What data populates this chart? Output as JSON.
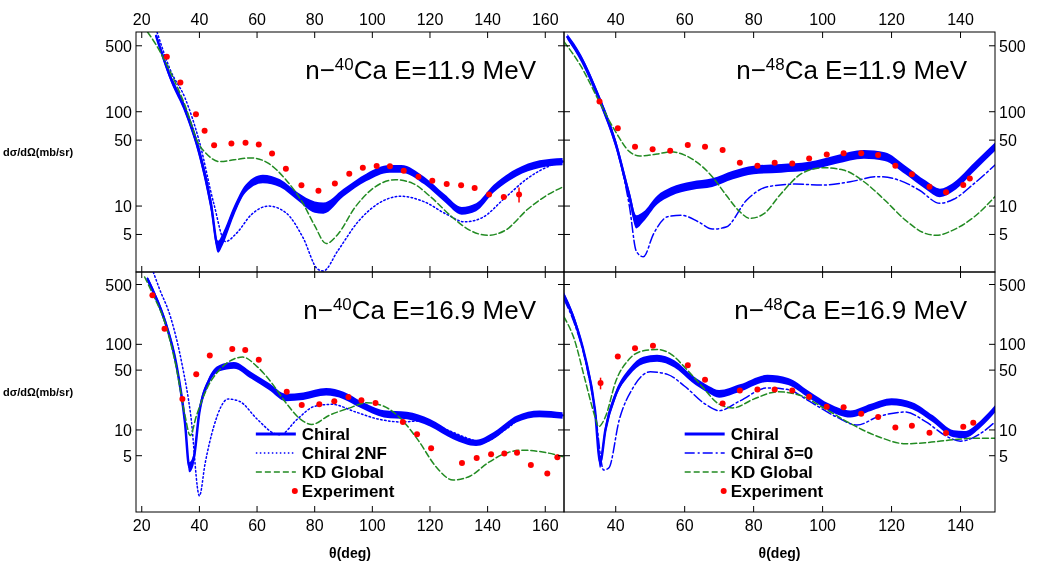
{
  "chart_data": [
    {
      "type": "line",
      "title": "n−$^{40}$Ca  E=11.9 MeV",
      "ylabel": "dσ/dΩ(mb/sr)",
      "log": "y",
      "xlim": [
        18,
        166.5
      ],
      "xticks": [
        20,
        40,
        60,
        80,
        100,
        120,
        140,
        160
      ],
      "ylim": [
        2,
        700
      ],
      "yticks": [
        5,
        10,
        50,
        100,
        500
      ],
      "series": [
        {
          "type": "line",
          "color": "#0000ff",
          "line_style": "solid",
          "x": [
            25,
            30,
            35,
            40,
            44,
            46.5,
            48,
            52,
            56,
            62,
            68,
            74,
            80,
            83,
            90,
            98,
            106,
            110,
            118,
            125,
            131,
            136,
            142,
            150,
            158,
            166
          ],
          "values": [
            635,
            229,
            107,
            37,
            10.6,
            3.7,
            4.4,
            8.9,
            15.2,
            19.3,
            17.4,
            12.7,
            9.9,
            9.6,
            13.9,
            20.2,
            24.8,
            24.8,
            18.6,
            12.2,
            8.9,
            9.7,
            15.2,
            22.6,
            27.8,
            29.6
          ],
          "lower": [
            600,
            210,
            96,
            32,
            8.8,
            3.2,
            3.8,
            7.9,
            13.8,
            17.4,
            15.8,
            11.5,
            8.5,
            8.3,
            12.6,
            18.4,
            22.6,
            22.6,
            17,
            11.1,
            8.1,
            8.8,
            13.8,
            20.6,
            25.3,
            27
          ],
          "upper": [
            670,
            250,
            118,
            42,
            12.4,
            4.3,
            5.1,
            10,
            16.8,
            21.5,
            19.2,
            14,
            11.2,
            10.9,
            15.3,
            22.2,
            27.2,
            27.2,
            20.4,
            13.4,
            9.8,
            10.7,
            16.7,
            24.8,
            30.5,
            32.4
          ]
        },
        {
          "type": "line",
          "color": "#0000ff",
          "line_style": "dotted",
          "x": [
            25.3,
            30,
            35,
            40,
            45,
            49,
            53,
            58,
            64,
            70,
            76,
            81,
            83,
            88,
            95,
            102,
            110,
            118,
            126,
            132,
            138,
            146,
            154,
            162,
            166
          ],
          "values": [
            700,
            273,
            140,
            48,
            10.6,
            4.2,
            5.2,
            8.1,
            10,
            8.5,
            4.6,
            2.15,
            2.05,
            3.35,
            6.8,
            10.6,
            12.7,
            11.1,
            8.1,
            6.8,
            7.5,
            12.2,
            19.8,
            27,
            29.6
          ]
        },
        {
          "type": "line",
          "color": "#228b22",
          "line_style": "dashed",
          "x": [
            22,
            25,
            30,
            35,
            40,
            42,
            47,
            52,
            58,
            64,
            70,
            76,
            80,
            84,
            88,
            94,
            100,
            108,
            114,
            120,
            128,
            134,
            140,
            146,
            154,
            160,
            166
          ],
          "values": [
            700,
            510,
            261,
            117,
            44,
            37,
            29.6,
            30.9,
            32.4,
            28.3,
            19,
            10.6,
            6.2,
            4,
            5,
            9.7,
            15.2,
            19,
            17.4,
            12.7,
            7.5,
            5.5,
            4.9,
            5.5,
            9.3,
            12.7,
            15.9
          ]
        },
        {
          "type": "scatter",
          "color": "#ff0000",
          "marker": "circle",
          "x": [
            28.7,
            33.4,
            38.8,
            41.8,
            45.1,
            51.1,
            56,
            60.6,
            65.2,
            70,
            75.4,
            81.3,
            87,
            92,
            96.7,
            101.5,
            106.1,
            110.9,
            116,
            120.8,
            125.8,
            130.8,
            135.5,
            140.5,
            145.6,
            150.9
          ],
          "values": [
            383,
            204,
            94,
            63,
            44,
            46,
            47,
            45,
            36,
            24.8,
            16.6,
            14.5,
            17.3,
            22,
            25.4,
            26.6,
            26.4,
            23.7,
            20.4,
            18.5,
            17.1,
            16.6,
            15.5,
            13.3,
            12.5,
            13.3
          ],
          "errors": [
            null,
            null,
            null,
            null,
            null,
            null,
            null,
            null,
            null,
            null,
            null,
            null,
            null,
            null,
            null,
            null,
            null,
            null,
            null,
            null,
            null,
            null,
            null,
            null,
            null,
            2.4
          ]
        }
      ]
    },
    {
      "type": "line",
      "title": "n−$^{48}$Ca  E=11.9 MeV",
      "log": "y2",
      "xlim": [
        25,
        150
      ],
      "xticks": [
        40,
        60,
        80,
        100,
        120,
        140
      ],
      "y2lim": [
        2,
        700
      ],
      "y2ticks": [
        5,
        10,
        50,
        100,
        500
      ],
      "series": [
        {
          "type": "line",
          "axis": "y2",
          "color": "#0000ff",
          "line_style": "solid",
          "x": [
            26,
            30,
            35,
            40,
            44,
            46,
            48,
            52,
            56,
            62,
            68,
            74,
            80,
            88,
            96,
            104,
            112,
            118,
            124,
            130,
            134,
            138,
            144,
            150
          ],
          "values": [
            620,
            367,
            144,
            46,
            12.6,
            6.8,
            7.7,
            11.6,
            14.2,
            16.4,
            17.7,
            21.3,
            24.1,
            25.1,
            26.5,
            31.2,
            35.3,
            33.4,
            24.1,
            16.7,
            13.8,
            16,
            26,
            42.6
          ],
          "lower": [
            580,
            335,
            130,
            41,
            11,
            5.8,
            6.8,
            10.4,
            12.8,
            14.8,
            15.9,
            19.2,
            21.7,
            22.6,
            23.9,
            28.1,
            31.8,
            30.1,
            21.7,
            15,
            12.4,
            14.4,
            23.4,
            38.3
          ],
          "upper": [
            665,
            400,
            158,
            51,
            14.4,
            8,
            8.7,
            12.9,
            15.8,
            18.2,
            19.7,
            23.7,
            26.8,
            27.9,
            29.5,
            34.6,
            39.2,
            37.1,
            26.8,
            18.5,
            15.3,
            17.8,
            28.9,
            47.3
          ]
        },
        {
          "type": "line",
          "axis": "y2",
          "color": "#0000ff",
          "line_style": "dashdot",
          "x": [
            26,
            30,
            35,
            40,
            44,
            46,
            48,
            51,
            55,
            59,
            64,
            68,
            72,
            78,
            84,
            92,
            100,
            108,
            116,
            122,
            128,
            134,
            138,
            144,
            150
          ],
          "values": [
            620,
            367,
            144,
            46,
            9.8,
            3.3,
            2.9,
            5.1,
            7.7,
            8,
            6.8,
            5.7,
            6,
            11.6,
            16,
            17.1,
            16.7,
            18.1,
            20.5,
            18.9,
            14.8,
            10.7,
            11.8,
            17.4,
            27.2
          ]
        },
        {
          "type": "line",
          "axis": "y2",
          "color": "#228b22",
          "line_style": "dashed",
          "x": [
            25,
            30,
            35,
            40,
            44,
            47,
            52,
            56,
            60,
            64,
            68,
            72,
            76,
            79,
            83,
            88,
            94,
            100,
            106,
            112,
            118,
            124,
            130,
            133,
            138,
            144,
            150
          ],
          "values": [
            552,
            300,
            133,
            61,
            37.7,
            34,
            35.6,
            37.7,
            34.7,
            28.3,
            20.5,
            13.1,
            8.7,
            7.4,
            8.3,
            13.6,
            22.2,
            25.5,
            24.1,
            18.1,
            11.6,
            7.1,
            5.1,
            4.9,
            5.6,
            7.7,
            12.6
          ]
        },
        {
          "type": "scatter",
          "axis": "y2",
          "color": "#ff0000",
          "marker": "circle",
          "x": [
            35.3,
            40.6,
            45.6,
            50.7,
            55.8,
            60.9,
            65.9,
            71,
            76,
            81.1,
            86.1,
            91.2,
            96.1,
            101.2,
            106.1,
            111.2,
            116.1,
            121.1,
            125.9,
            131,
            135.8,
            140.8,
            142.7
          ],
          "values": [
            128,
            67,
            42.6,
            40,
            38.6,
            44.4,
            42.6,
            39.3,
            28.8,
            26.8,
            28.8,
            28.3,
            32,
            35.3,
            36.2,
            36.2,
            34.7,
            26.8,
            21.8,
            16,
            14,
            16.7,
            19.6
          ]
        }
      ]
    },
    {
      "type": "line",
      "title": "n−$^{40}$Ca  E=16.9 MeV",
      "xlabel": "θ(deg)",
      "ylabel": "dσ/dΩ(mb/sr)",
      "log": "y",
      "legend": "bottom",
      "xlim": [
        18,
        166.5
      ],
      "xticks": [
        20,
        40,
        60,
        80,
        100,
        120,
        140,
        160
      ],
      "ylim": [
        1.1,
        700
      ],
      "yticks": [
        5,
        10,
        50,
        100,
        500
      ],
      "series": [
        {
          "name": "Chiral",
          "type": "line",
          "color": "#0000ff",
          "line_style": "solid",
          "x": [
            22,
            24,
            28,
            32,
            35,
            36.5,
            38,
            40,
            43,
            47,
            52,
            58,
            64,
            70,
            76,
            84,
            90,
            96,
            104,
            112,
            120,
            128,
            136,
            142,
            150,
            158,
            166
          ],
          "values": [
            580,
            414,
            189,
            58,
            12.2,
            3.7,
            4.6,
            16.3,
            35.7,
            53,
            57,
            43.5,
            32.4,
            24.1,
            24.9,
            28,
            25.4,
            19.9,
            15.5,
            14.8,
            12.2,
            8.6,
            7.1,
            8.6,
            13.4,
            15.5,
            14.8
          ],
          "lower": [
            540,
            380,
            172,
            52,
            10.5,
            3.2,
            3.9,
            14.3,
            32.5,
            48.5,
            52,
            39.5,
            29.5,
            21.7,
            22.4,
            25.2,
            22.9,
            18,
            14,
            13.3,
            11,
            7.8,
            6.5,
            7.8,
            12.2,
            14.1,
            13.5
          ],
          "upper": [
            620,
            450,
            207,
            64,
            14,
            4.2,
            5.3,
            18.4,
            39,
            57.5,
            62,
            47.5,
            35.5,
            26.5,
            27.4,
            30.8,
            27.9,
            21.8,
            17,
            16.3,
            13.4,
            9.4,
            7.7,
            9.4,
            14.6,
            16.9,
            16.1
          ]
        },
        {
          "name": "Chiral 2NF",
          "type": "line",
          "color": "#0000ff",
          "line_style": "dotted",
          "x": [
            24,
            26,
            30,
            34,
            37,
            40,
            42,
            45,
            50,
            54,
            60,
            66,
            68,
            74,
            80,
            86,
            94,
            102,
            110,
            118,
            126,
            134,
            138,
            146,
            154,
            166
          ],
          "values": [
            700,
            457,
            208,
            58,
            14.8,
            1.7,
            4.1,
            11,
            23,
            21.5,
            13.4,
            9.1,
            8.8,
            13.4,
            18.9,
            19.9,
            16.3,
            13.4,
            12.4,
            12.8,
            10,
            7.8,
            7.1,
            10,
            14.8,
            14.8
          ]
        },
        {
          "name": "KD Global",
          "type": "line",
          "color": "#228b22",
          "line_style": "dashed",
          "x": [
            21,
            24,
            28,
            32,
            35,
            36.8,
            39,
            43,
            47,
            52,
            55,
            60,
            65,
            70,
            75,
            79,
            85,
            92,
            98,
            104,
            110,
            116,
            122,
            128,
            134,
            140,
            146,
            152,
            158,
            166
          ],
          "values": [
            612,
            375,
            180,
            53,
            14.8,
            8.6,
            14.8,
            32.4,
            50.4,
            67.5,
            71,
            55,
            35.7,
            20.8,
            13.4,
            11.6,
            14.8,
            18,
            20.8,
            18.9,
            13.4,
            7.5,
            3.75,
            2.6,
            2.9,
            4.1,
            5.3,
            5.8,
            5.6,
            4.9
          ]
        },
        {
          "name": "Experiment",
          "type": "scatter",
          "color": "#ff0000",
          "marker": "circle",
          "x": [
            23.7,
            27.9,
            34.1,
            38.9,
            43.6,
            51.4,
            55.9,
            60.6,
            70.3,
            75.5,
            81.6,
            86.8,
            91.7,
            96.2,
            101.1,
            110.6,
            115.5,
            120.4,
            131.1,
            136.2,
            141.2,
            145.8,
            150.2,
            155,
            160.7,
            164.2
          ],
          "values": [
            375,
            152,
            23,
            44.8,
            74,
            88,
            86,
            66,
            28,
            19.5,
            19.9,
            21.7,
            24.2,
            22.3,
            20.7,
            12.4,
            8.9,
            6.1,
            4.1,
            4.7,
            5.2,
            5.3,
            5.4,
            3.9,
            3.1,
            4.8
          ]
        }
      ]
    },
    {
      "type": "line",
      "title": "n−$^{48}$Ca  E=16.9 MeV",
      "xlabel": "θ(deg)",
      "log": "y2",
      "legend": "bottom",
      "xlim": [
        25,
        150
      ],
      "xticks": [
        40,
        60,
        80,
        100,
        120,
        140
      ],
      "y2lim": [
        1.1,
        700
      ],
      "y2ticks": [
        5,
        10,
        50,
        100,
        500
      ],
      "series": [
        {
          "name": "Chiral",
          "type": "line",
          "axis": "y2",
          "color": "#0000ff",
          "line_style": "solid",
          "x": [
            25,
            28,
            31,
            34,
            35.5,
            37,
            40,
            44,
            48,
            52,
            57,
            62,
            67,
            70,
            76,
            84,
            90,
            96,
            102,
            108,
            114,
            120,
            126,
            132,
            138,
            141,
            146,
            150
          ],
          "values": [
            368,
            192,
            74,
            16.8,
            4.2,
            10,
            26,
            47.8,
            64.9,
            68.7,
            59,
            40,
            29.6,
            26.5,
            31,
            40,
            36.8,
            26,
            18.4,
            15.4,
            18.4,
            21.3,
            19.2,
            13.5,
            9,
            8.8,
            11.9,
            17.6
          ],
          "lower": [
            335,
            175,
            67,
            14.6,
            3.6,
            8.7,
            23.5,
            43.5,
            59,
            62.5,
            53.6,
            36.4,
            26.9,
            23.8,
            27.9,
            36.4,
            33.5,
            23.6,
            16.7,
            14,
            16.7,
            19.4,
            17.5,
            12.3,
            8.2,
            8,
            10.8,
            16
          ],
          "upper": [
            405,
            211,
            81,
            19.3,
            4.9,
            11.5,
            28.6,
            52.6,
            71.4,
            75.6,
            65,
            44,
            32.6,
            29.2,
            34.1,
            44,
            40.5,
            28.6,
            20.2,
            16.9,
            20.2,
            23.4,
            21.1,
            14.8,
            9.9,
            9.7,
            13.1,
            19.4
          ]
        },
        {
          "name": "Chiral δ=0",
          "type": "line",
          "axis": "y2",
          "color": "#0000ff",
          "line_style": "dashdot",
          "x": [
            25,
            28,
            31,
            34,
            36.5,
            38,
            41,
            45,
            50,
            55,
            60,
            66,
            70,
            76,
            84,
            90,
            96,
            104,
            110,
            116,
            124,
            130,
            136,
            140,
            146,
            150
          ],
          "values": [
            337,
            176,
            70,
            16.8,
            3.4,
            3.6,
            13,
            31,
            47.8,
            44.6,
            32.4,
            20,
            16.8,
            21.8,
            31,
            29.6,
            21.8,
            14.2,
            11.4,
            14.2,
            16.2,
            12.4,
            8.4,
            7.4,
            9.2,
            12.4
          ]
        },
        {
          "name": "KD Global",
          "type": "line",
          "axis": "y2",
          "color": "#228b22",
          "line_style": "dashed",
          "x": [
            25,
            28,
            31,
            34,
            35,
            37,
            40,
            44,
            48,
            52,
            56,
            60,
            65,
            70,
            74,
            80,
            87,
            94,
            100,
            108,
            116,
            124,
            130,
            138,
            144,
            150
          ],
          "values": [
            209,
            114,
            40,
            14.2,
            10.9,
            14.2,
            36.8,
            67.8,
            84,
            87,
            77,
            54,
            32.4,
            20,
            18.1,
            22.9,
            27.9,
            24.9,
            18.4,
            11.9,
            8.4,
            6.9,
            7.1,
            7.7,
            8,
            8
          ]
        },
        {
          "name": "Experiment",
          "type": "scatter",
          "axis": "y2",
          "color": "#ff0000",
          "marker": "circle",
          "x": [
            35.6,
            40.6,
            45.6,
            50.8,
            60.9,
            65.9,
            71,
            76,
            81.1,
            86.1,
            91.2,
            96.1,
            101.2,
            106.1,
            111.2,
            116.1,
            121.1,
            125.9,
            131,
            135.8,
            140.8,
            143.7
          ],
          "values": [
            35.3,
            72,
            90,
            96,
            57,
            38.5,
            20.4,
            28.8,
            29.6,
            29.6,
            28.8,
            24.5,
            18.7,
            18.4,
            15.5,
            14.2,
            10.7,
            11.2,
            9.3,
            9.2,
            10.9,
            12.1
          ],
          "errors": [
            5.5,
            null,
            null,
            null,
            null,
            null,
            null,
            null,
            null,
            null,
            null,
            null,
            null,
            null,
            null,
            null,
            null,
            null,
            null,
            null,
            null,
            null
          ]
        }
      ]
    }
  ]
}
